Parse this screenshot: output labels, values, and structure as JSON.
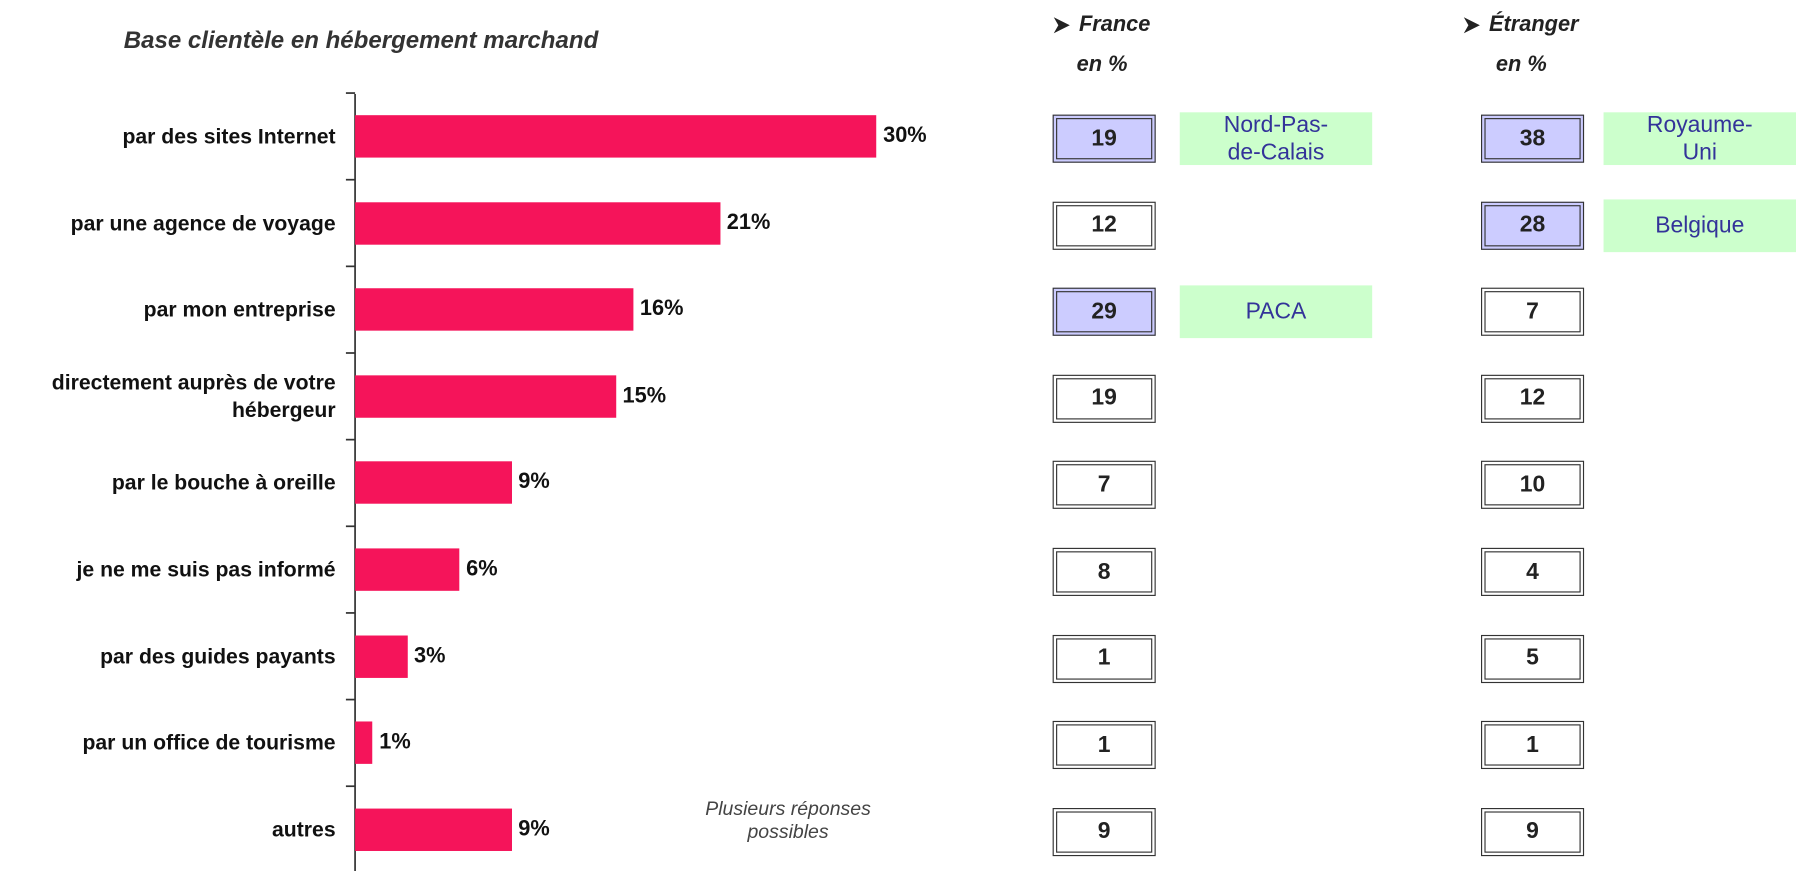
{
  "chart_data": {
    "type": "bar",
    "orientation": "horizontal",
    "title": "Base clientèle en hébergement marchand",
    "categories": [
      "par des sites Internet",
      "par une agence de voyage",
      "par mon entreprise",
      "directement auprès de votre\nhébergeur",
      "par le bouche à oreille",
      "je ne me suis pas informé",
      "par des guides payants",
      "par un office de tourisme",
      "autres"
    ],
    "values": [
      30,
      21,
      16,
      15,
      9,
      6,
      3,
      1,
      9
    ],
    "value_labels": [
      "30%",
      "21%",
      "16%",
      "15%",
      "9%",
      "6%",
      "3%",
      "1%",
      "9%"
    ],
    "color": "#f5145a",
    "note": "Plusieurs réponses\npossibles"
  },
  "panels": [
    {
      "heading": "France",
      "unit": "en %",
      "values": [
        19,
        12,
        29,
        19,
        7,
        8,
        1,
        1,
        9
      ],
      "highlights": [
        {
          "row": 0,
          "label": "Nord-Pas-de-Calais"
        },
        {
          "row": 2,
          "label": "PACA"
        }
      ]
    },
    {
      "heading": "Étranger",
      "unit": "en %",
      "values": [
        38,
        28,
        7,
        12,
        10,
        4,
        5,
        1,
        9
      ],
      "highlights": [
        {
          "row": 0,
          "label": "Royaume-Uni"
        },
        {
          "row": 1,
          "label": "Belgique"
        }
      ]
    }
  ]
}
